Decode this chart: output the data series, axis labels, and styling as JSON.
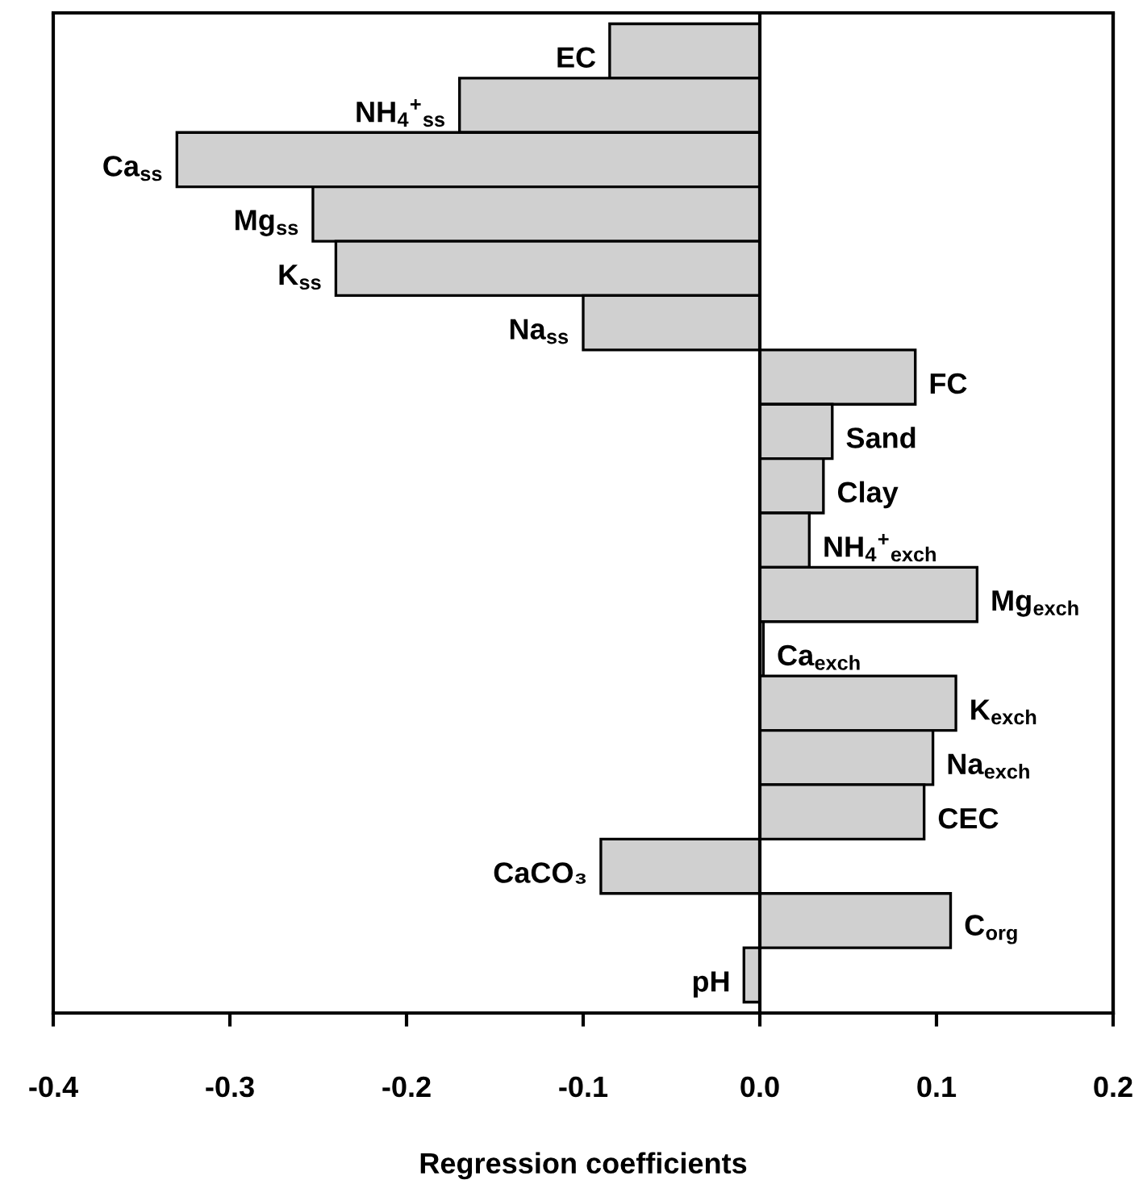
{
  "chart_data": {
    "type": "bar",
    "orientation": "horizontal",
    "xlabel": "Regression coefficients",
    "categories": [
      "EC",
      "NH$_{4}$$^{+}$$_{ss}$",
      "Ca$_{ss}$",
      "Mg$_{ss}$",
      "K$_{ss}$",
      "Na$_{ss}$",
      "FC",
      "Sand",
      "Clay",
      "NH$_{4}$$^{+}$$_{exch}$",
      "Mg$_{exch}$",
      "Ca$_{exch}$",
      "K$_{exch}$",
      "Na$_{exch}$",
      "CEC",
      "CaCO₃",
      "C$_{org}$",
      "pH"
    ],
    "values": [
      -0.085,
      -0.17,
      -0.33,
      -0.253,
      -0.24,
      -0.1,
      0.088,
      0.041,
      0.036,
      0.028,
      0.123,
      0.002,
      0.111,
      0.098,
      0.093,
      -0.09,
      0.108,
      -0.009
    ],
    "color": "#d0d0d0",
    "xlim": [
      -0.4,
      0.2
    ],
    "xticks": [
      {
        "value": -0.4,
        "label": "-0.4"
      },
      {
        "value": -0.3,
        "label": "-0.3"
      },
      {
        "value": -0.2,
        "label": "-0.2"
      },
      {
        "value": -0.1,
        "label": "-0.1"
      },
      {
        "value": 0,
        "label": "0.0"
      },
      {
        "value": 0.1,
        "label": "0.1"
      },
      {
        "value": 0.2,
        "label": "0.2"
      }
    ],
    "tick_labels": "x",
    "legend": false
  }
}
